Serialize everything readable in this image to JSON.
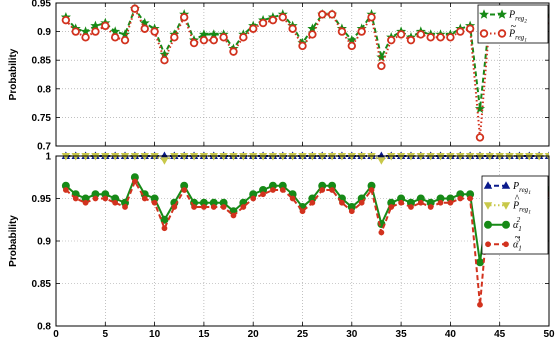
{
  "chart_data": [
    {
      "type": "line",
      "ylabel": "Probability",
      "xlabel": "",
      "xlim": [
        0,
        50
      ],
      "ylim": [
        0.7,
        0.95
      ],
      "xticks": [
        "0",
        "5",
        "10",
        "15",
        "20",
        "25",
        "30",
        "35",
        "40",
        "45",
        "50"
      ],
      "yticks": [
        "0.7",
        "0.75",
        "0.8",
        "0.85",
        "0.9",
        "0.95"
      ],
      "grid": true,
      "legend_position": "top-right",
      "x": [
        1,
        2,
        3,
        4,
        5,
        6,
        7,
        8,
        9,
        10,
        11,
        12,
        13,
        14,
        15,
        16,
        17,
        18,
        19,
        20,
        21,
        22,
        23,
        24,
        25,
        26,
        27,
        28,
        29,
        30,
        31,
        32,
        33,
        34,
        35,
        36,
        37,
        38,
        39,
        40,
        41,
        42,
        43,
        44,
        45,
        46,
        47,
        48,
        49,
        50
      ],
      "series": [
        {
          "name": "P_reg2",
          "label_base": "P",
          "label_sub": "reg",
          "label_subsub": "2",
          "color": "#178a17",
          "marker": "star",
          "line": "dashed",
          "values": [
            0.925,
            0.905,
            0.9,
            0.91,
            0.915,
            0.9,
            0.895,
            0.94,
            0.915,
            0.905,
            0.86,
            0.895,
            0.93,
            0.885,
            0.895,
            0.895,
            0.895,
            0.87,
            0.895,
            0.91,
            0.92,
            0.925,
            0.93,
            0.91,
            0.88,
            0.905,
            0.93,
            0.93,
            0.905,
            0.885,
            0.905,
            0.93,
            0.855,
            0.89,
            0.9,
            0.89,
            0.9,
            0.895,
            0.895,
            0.895,
            0.905,
            0.91,
            0.765,
            0.925,
            0.925,
            0.925,
            0.925,
            0.925,
            0.91,
            0.925
          ]
        },
        {
          "name": "P̃_reg1",
          "label_base": "P",
          "label_tilde": true,
          "label_sub": "reg",
          "label_subsub": "1",
          "color": "#d2321e",
          "marker": "circle",
          "line": "dotted",
          "values": [
            0.92,
            0.9,
            0.89,
            0.9,
            0.91,
            0.89,
            0.885,
            0.94,
            0.905,
            0.9,
            0.85,
            0.89,
            0.925,
            0.88,
            0.885,
            0.885,
            0.89,
            0.865,
            0.89,
            0.905,
            0.915,
            0.92,
            0.925,
            0.905,
            0.875,
            0.895,
            0.93,
            0.93,
            0.9,
            0.875,
            0.9,
            0.925,
            0.84,
            0.885,
            0.895,
            0.885,
            0.895,
            0.89,
            0.89,
            0.89,
            0.9,
            0.905,
            0.715,
            0.92,
            0.92,
            0.92,
            0.92,
            0.92,
            0.905,
            0.92
          ]
        }
      ]
    },
    {
      "type": "line",
      "ylabel": "Probability",
      "xlabel": "Matrix",
      "xlim": [
        0,
        50
      ],
      "ylim": [
        0.8,
        1.0
      ],
      "xticks": [
        "0",
        "5",
        "10",
        "15",
        "20",
        "25",
        "30",
        "35",
        "40",
        "45",
        "50"
      ],
      "yticks": [
        "0.8",
        "0.85",
        "0.9",
        "0.95",
        "1"
      ],
      "grid": true,
      "legend_position": "right",
      "x": [
        1,
        2,
        3,
        4,
        5,
        6,
        7,
        8,
        9,
        10,
        11,
        12,
        13,
        14,
        15,
        16,
        17,
        18,
        19,
        20,
        21,
        22,
        23,
        24,
        25,
        26,
        27,
        28,
        29,
        30,
        31,
        32,
        33,
        34,
        35,
        36,
        37,
        38,
        39,
        40,
        41,
        42,
        43,
        44,
        45,
        46,
        47,
        48,
        49,
        50
      ],
      "series": [
        {
          "name": "P_reg1",
          "label_base": "P",
          "label_sub": "reg",
          "label_subsub": "1",
          "color": "#0a1a8c",
          "marker": "triangle-up",
          "line": "dashed",
          "values": [
            1,
            1,
            1,
            1,
            1,
            1,
            1,
            1,
            1,
            1,
            1,
            1,
            1,
            1,
            1,
            1,
            1,
            1,
            1,
            1,
            1,
            1,
            1,
            1,
            1,
            1,
            1,
            1,
            1,
            1,
            1,
            1,
            1,
            1,
            1,
            1,
            1,
            1,
            1,
            1,
            1,
            1,
            1,
            1,
            1,
            1,
            1,
            1,
            1,
            1
          ]
        },
        {
          "name": "P̂_reg1",
          "label_base": "P",
          "label_hat": true,
          "label_sub": "reg",
          "label_subsub": "1",
          "color": "#c8c84a",
          "marker": "triangle-down",
          "line": "dotted",
          "values": [
            1,
            1,
            1,
            1,
            1,
            1,
            1,
            1,
            1,
            1,
            0.995,
            1,
            1,
            1,
            1,
            1,
            1,
            1,
            1,
            1,
            1,
            1,
            1,
            1,
            1,
            1,
            1,
            1,
            1,
            1,
            1,
            1,
            0.995,
            1,
            1,
            1,
            1,
            1,
            1,
            1,
            1,
            1,
            1,
            1,
            1,
            1,
            1,
            1,
            1,
            1
          ]
        },
        {
          "name": "α_1^2",
          "label_base": "α",
          "label_sub": "1",
          "label_sup": "2",
          "color": "#178a17",
          "marker": "circle-filled",
          "line": "solid",
          "values": [
            0.965,
            0.955,
            0.95,
            0.955,
            0.955,
            0.95,
            0.945,
            0.975,
            0.955,
            0.95,
            0.925,
            0.945,
            0.965,
            0.945,
            0.945,
            0.945,
            0.945,
            0.935,
            0.945,
            0.955,
            0.96,
            0.965,
            0.965,
            0.955,
            0.94,
            0.95,
            0.965,
            0.965,
            0.95,
            0.94,
            0.95,
            0.965,
            0.92,
            0.945,
            0.95,
            0.945,
            0.95,
            0.945,
            0.95,
            0.95,
            0.955,
            0.955,
            0.875,
            0.96,
            0.96,
            0.96,
            0.96,
            0.96,
            0.955,
            0.96
          ]
        },
        {
          "name": "α̃_1^3",
          "label_base": "α",
          "label_tilde": true,
          "label_sub": "1",
          "label_sup": "3",
          "color": "#d2321e",
          "marker": "dot",
          "line": "dashed",
          "values": [
            0.96,
            0.95,
            0.945,
            0.95,
            0.95,
            0.945,
            0.94,
            0.97,
            0.95,
            0.945,
            0.915,
            0.94,
            0.96,
            0.94,
            0.94,
            0.94,
            0.94,
            0.93,
            0.94,
            0.95,
            0.955,
            0.96,
            0.96,
            0.95,
            0.935,
            0.945,
            0.96,
            0.96,
            0.945,
            0.935,
            0.945,
            0.96,
            0.91,
            0.94,
            0.945,
            0.94,
            0.945,
            0.94,
            0.945,
            0.945,
            0.95,
            0.95,
            0.825,
            0.955,
            0.955,
            0.955,
            0.955,
            0.955,
            0.95,
            0.955
          ]
        }
      ]
    }
  ]
}
